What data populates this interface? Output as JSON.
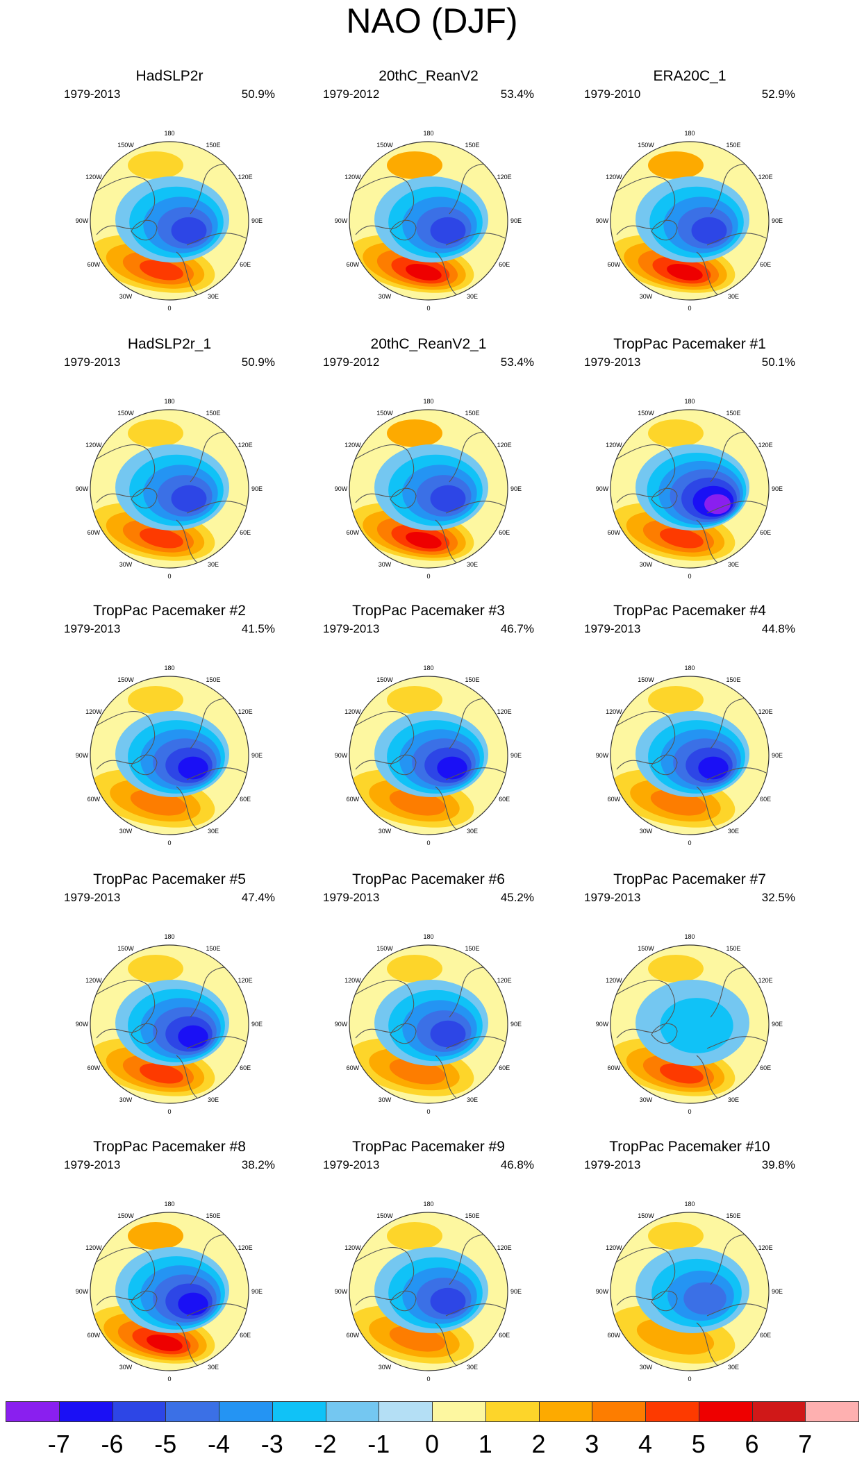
{
  "title": "NAO (DJF)",
  "legend": {
    "colors": [
      "#8a1fef",
      "#1a10f5",
      "#2d46e6",
      "#3b70e6",
      "#2494f3",
      "#10c2f7",
      "#74c7f1",
      "#b4dff5",
      "#fdf7a0",
      "#fdd52a",
      "#fdaa00",
      "#fd7d00",
      "#fd3a00",
      "#ee0000",
      "#d01818",
      "#feb0b0"
    ],
    "labels": [
      "-7",
      "-6",
      "-5",
      "-4",
      "-3",
      "-2",
      "-1",
      "0",
      "1",
      "2",
      "3",
      "4",
      "5",
      "6",
      "7"
    ]
  },
  "longitude_labels": [
    "180",
    "150E",
    "120E",
    "90E",
    "60E",
    "30E",
    "0",
    "30W",
    "60W",
    "90W",
    "120W",
    "150W"
  ],
  "panels": [
    {
      "title": "HadSLP2r",
      "years": "1979-2013",
      "variance": "50.9%",
      "neg": -5,
      "pos": 4
    },
    {
      "title": "20thC_ReanV2",
      "years": "1979-2012",
      "variance": "53.4%",
      "neg": -5,
      "pos": 5
    },
    {
      "title": "ERA20C_1",
      "years": "1979-2010",
      "variance": "52.9%",
      "neg": -5,
      "pos": 5
    },
    {
      "title": "HadSLP2r_1",
      "years": "1979-2013",
      "variance": "50.9%",
      "neg": -5,
      "pos": 4
    },
    {
      "title": "20thC_ReanV2_1",
      "years": "1979-2012",
      "variance": "53.4%",
      "neg": -5,
      "pos": 5
    },
    {
      "title": "TropPac Pacemaker #1",
      "years": "1979-2013",
      "variance": "50.1%",
      "neg": -7,
      "pos": 4
    },
    {
      "title": "TropPac Pacemaker #2",
      "years": "1979-2013",
      "variance": "41.5%",
      "neg": -6,
      "pos": 3
    },
    {
      "title": "TropPac Pacemaker #3",
      "years": "1979-2013",
      "variance": "46.7%",
      "neg": -6,
      "pos": 3
    },
    {
      "title": "TropPac Pacemaker #4",
      "years": "1979-2013",
      "variance": "44.8%",
      "neg": -6,
      "pos": 3
    },
    {
      "title": "TropPac Pacemaker #5",
      "years": "1979-2013",
      "variance": "47.4%",
      "neg": -6,
      "pos": 4
    },
    {
      "title": "TropPac Pacemaker #6",
      "years": "1979-2013",
      "variance": "45.2%",
      "neg": -5,
      "pos": 3
    },
    {
      "title": "TropPac Pacemaker #7",
      "years": "1979-2013",
      "variance": "32.5%",
      "neg": -2,
      "pos": 4
    },
    {
      "title": "TropPac Pacemaker #8",
      "years": "1979-2013",
      "variance": "38.2%",
      "neg": -6,
      "pos": 5
    },
    {
      "title": "TropPac Pacemaker #9",
      "years": "1979-2013",
      "variance": "46.8%",
      "neg": -5,
      "pos": 3
    },
    {
      "title": "TropPac Pacemaker #10",
      "years": "1979-2013",
      "variance": "39.8%",
      "neg": -4,
      "pos": 2
    }
  ]
}
